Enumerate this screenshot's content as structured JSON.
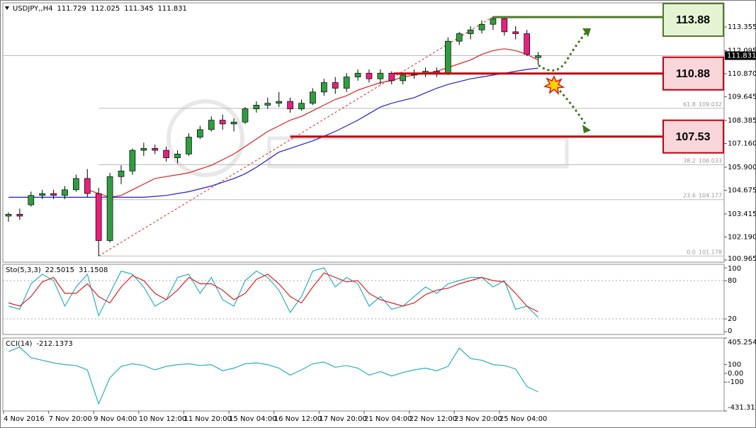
{
  "chart_data": [
    {
      "type": "candlestick",
      "title": "USDJPY,,H4",
      "xticks": [
        {
          "value": 0,
          "label": "4 Nov 2016"
        },
        {
          "value": 4,
          "label": "7 Nov 20:00"
        },
        {
          "value": 8,
          "label": "9 Nov 04:00"
        },
        {
          "value": 12,
          "label": "10 Nov 12:00"
        },
        {
          "value": 16,
          "label": "11 Nov 20:00"
        },
        {
          "value": 20,
          "label": "15 Nov 04:00"
        },
        {
          "value": 24,
          "label": "16 Nov 12:00"
        },
        {
          "value": 28,
          "label": "17 Nov 20:00"
        },
        {
          "value": 32,
          "label": "21 Nov 04:00"
        },
        {
          "value": 36,
          "label": "22 Nov 12:00"
        },
        {
          "value": 40,
          "label": "23 Nov 20:00"
        },
        {
          "value": 44,
          "label": "25 Nov 04:00"
        }
      ],
      "xlim": [
        -0.5,
        63.5
      ],
      "ylim": [
        100.85,
        114.64
      ],
      "yticks": [
        113.355,
        112.095,
        {
          "value": 110.87,
          "label": "110.870"
        },
        109.645,
        108.385,
        {
          "value": 107.16,
          "label": "107.160"
        },
        {
          "value": 105.9,
          "label": "105.900"
        },
        104.675,
        103.415,
        {
          "value": 102.19,
          "label": "102.190"
        },
        100.965
      ],
      "grid": false,
      "up_color": "#2f9e3f",
      "down_color": "#e8207c",
      "open": [
        103.3,
        103.4,
        103.9,
        104.4,
        104.5,
        104.4,
        104.7,
        105.3,
        104.5,
        102.0,
        105.4,
        105.7,
        106.8,
        106.9,
        106.8,
        106.4,
        106.6,
        107.5,
        107.9,
        108.4,
        108.2,
        108.3,
        109.0,
        109.2,
        109.3,
        109.4,
        109.0,
        109.3,
        109.9,
        110.4,
        110.1,
        110.7,
        110.9,
        110.6,
        110.9,
        110.5,
        110.8,
        110.9,
        111.0,
        110.9,
        112.6,
        113.0,
        113.2,
        113.5,
        113.8,
        113.1,
        113.0,
        111.729
      ],
      "high": [
        103.5,
        103.7,
        104.6,
        104.7,
        104.7,
        104.9,
        105.5,
        105.8,
        104.8,
        105.6,
        106.0,
        106.9,
        107.2,
        107.1,
        107.0,
        106.8,
        107.7,
        108.1,
        108.6,
        108.7,
        108.5,
        109.1,
        109.4,
        109.6,
        109.9,
        109.6,
        109.5,
        110.1,
        110.6,
        110.7,
        110.9,
        111.1,
        111.1,
        111.1,
        111.0,
        110.9,
        111.1,
        111.2,
        111.2,
        112.8,
        113.1,
        113.4,
        113.7,
        113.9,
        113.9,
        113.4,
        113.2,
        112.025
      ],
      "low": [
        103.0,
        103.1,
        103.8,
        104.2,
        104.2,
        104.2,
        104.6,
        104.3,
        101.178,
        101.9,
        105.0,
        105.5,
        106.5,
        106.6,
        106.2,
        106.1,
        106.5,
        107.4,
        107.8,
        107.9,
        107.8,
        108.2,
        108.8,
        109.0,
        109.1,
        108.8,
        108.9,
        109.2,
        109.7,
        109.8,
        109.9,
        110.5,
        110.4,
        110.3,
        110.3,
        110.3,
        110.6,
        110.7,
        110.7,
        110.8,
        112.4,
        112.7,
        113.0,
        113.2,
        112.9,
        112.7,
        111.8,
        111.345
      ],
      "close": [
        103.4,
        103.3,
        104.4,
        104.5,
        104.4,
        104.7,
        105.3,
        104.5,
        102.0,
        105.4,
        105.7,
        106.8,
        106.9,
        106.8,
        106.4,
        106.6,
        107.5,
        107.9,
        108.4,
        108.2,
        108.3,
        109.0,
        109.2,
        109.3,
        109.4,
        109.0,
        109.3,
        109.9,
        110.4,
        110.1,
        110.7,
        110.9,
        110.6,
        110.9,
        110.5,
        110.8,
        110.9,
        111.0,
        110.9,
        112.6,
        113.0,
        113.2,
        113.5,
        113.8,
        113.1,
        113.0,
        111.9,
        111.831
      ],
      "series": [
        {
          "color": "#e02020",
          "values": [
            null,
            null,
            null,
            null,
            null,
            null,
            null,
            104.7,
            104.5,
            104.3,
            104.4,
            104.7,
            105.0,
            105.3,
            105.4,
            105.5,
            105.6,
            105.8,
            106.0,
            106.3,
            106.6,
            107.0,
            107.4,
            107.8,
            108.1,
            108.4,
            108.6,
            108.9,
            109.2,
            109.5,
            109.7,
            110.0,
            110.2,
            110.4,
            110.5,
            110.7,
            110.8,
            110.9,
            111.0,
            111.2,
            111.4,
            111.6,
            111.9,
            112.1,
            112.2,
            112.1,
            111.9,
            111.6
          ]
        },
        {
          "color": "#1f1fd0",
          "values": [
            104.3,
            104.3,
            104.3,
            104.3,
            104.3,
            104.3,
            104.3,
            104.3,
            104.3,
            104.3,
            104.3,
            104.3,
            104.3,
            104.35,
            104.4,
            104.5,
            104.6,
            104.75,
            104.9,
            105.1,
            105.3,
            105.55,
            105.9,
            106.3,
            106.7,
            106.9,
            107.1,
            107.3,
            107.55,
            107.8,
            108.1,
            108.4,
            108.75,
            109.1,
            109.3,
            109.45,
            109.6,
            109.85,
            110.1,
            110.3,
            110.45,
            110.6,
            110.7,
            110.8,
            110.9,
            111.0,
            111.1,
            111.17
          ]
        }
      ],
      "fib_levels": [
        {
          "ratio": "61.8",
          "value": 109.032
        },
        {
          "ratio": "38.2",
          "value": 106.033
        },
        {
          "ratio": "23.6",
          "value": 104.177
        },
        {
          "ratio": "0.0",
          "value": 101.178
        }
      ],
      "levels": [
        {
          "value": 113.88,
          "color": "#4e7a2a",
          "fill": "#e4f4d2"
        },
        {
          "value": 110.88,
          "color": "#c0000f",
          "fill": "#f9d6da"
        },
        {
          "value": 107.53,
          "color": "#c0000f",
          "fill": "#f9d6da"
        }
      ]
    },
    {
      "type": "line",
      "title": "Sto(5,3,3)",
      "ylim": [
        -4.4,
        105.6
      ],
      "yticks": [
        100,
        80,
        20,
        0
      ],
      "levels": [
        80,
        20
      ],
      "series": [
        {
          "color": "#2ab0c0",
          "values": [
            40,
            35,
            75,
            90,
            80,
            40,
            70,
            90,
            25,
            60,
            95,
            90,
            70,
            40,
            50,
            85,
            90,
            60,
            85,
            50,
            40,
            80,
            95,
            85,
            65,
            30,
            55,
            95,
            100,
            70,
            85,
            75,
            40,
            55,
            35,
            40,
            55,
            70,
            60,
            75,
            80,
            85,
            85,
            70,
            80,
            35,
            40,
            22.5015
          ]
        },
        {
          "color": "#e02020",
          "values": [
            45,
            40,
            55,
            78,
            85,
            60,
            60,
            75,
            55,
            45,
            70,
            88,
            80,
            60,
            50,
            65,
            85,
            75,
            75,
            65,
            50,
            60,
            82,
            90,
            75,
            55,
            45,
            70,
            92,
            85,
            78,
            80,
            60,
            50,
            45,
            40,
            45,
            58,
            65,
            68,
            75,
            80,
            85,
            80,
            78,
            60,
            40,
            31.1508
          ]
        }
      ]
    },
    {
      "type": "line",
      "title": "CCI(14)",
      "ylim": [
        -431.312,
        405.2548
      ],
      "yticks": [
        405.2548,
        100,
        {
          "value": 0,
          "label": "0.00"
        },
        -100,
        -431.312
      ],
      "series": [
        {
          "color": "#2ab0c0",
          "values": [
            250,
            300,
            180,
            150,
            120,
            100,
            90,
            40,
            -350,
            -50,
            80,
            110,
            90,
            40,
            80,
            100,
            110,
            90,
            100,
            30,
            60,
            110,
            120,
            100,
            60,
            -20,
            40,
            110,
            130,
            70,
            90,
            60,
            -20,
            20,
            -30,
            10,
            40,
            60,
            30,
            80,
            290,
            170,
            150,
            100,
            90,
            50,
            -150,
            -212.1373
          ]
        }
      ]
    }
  ]
}
